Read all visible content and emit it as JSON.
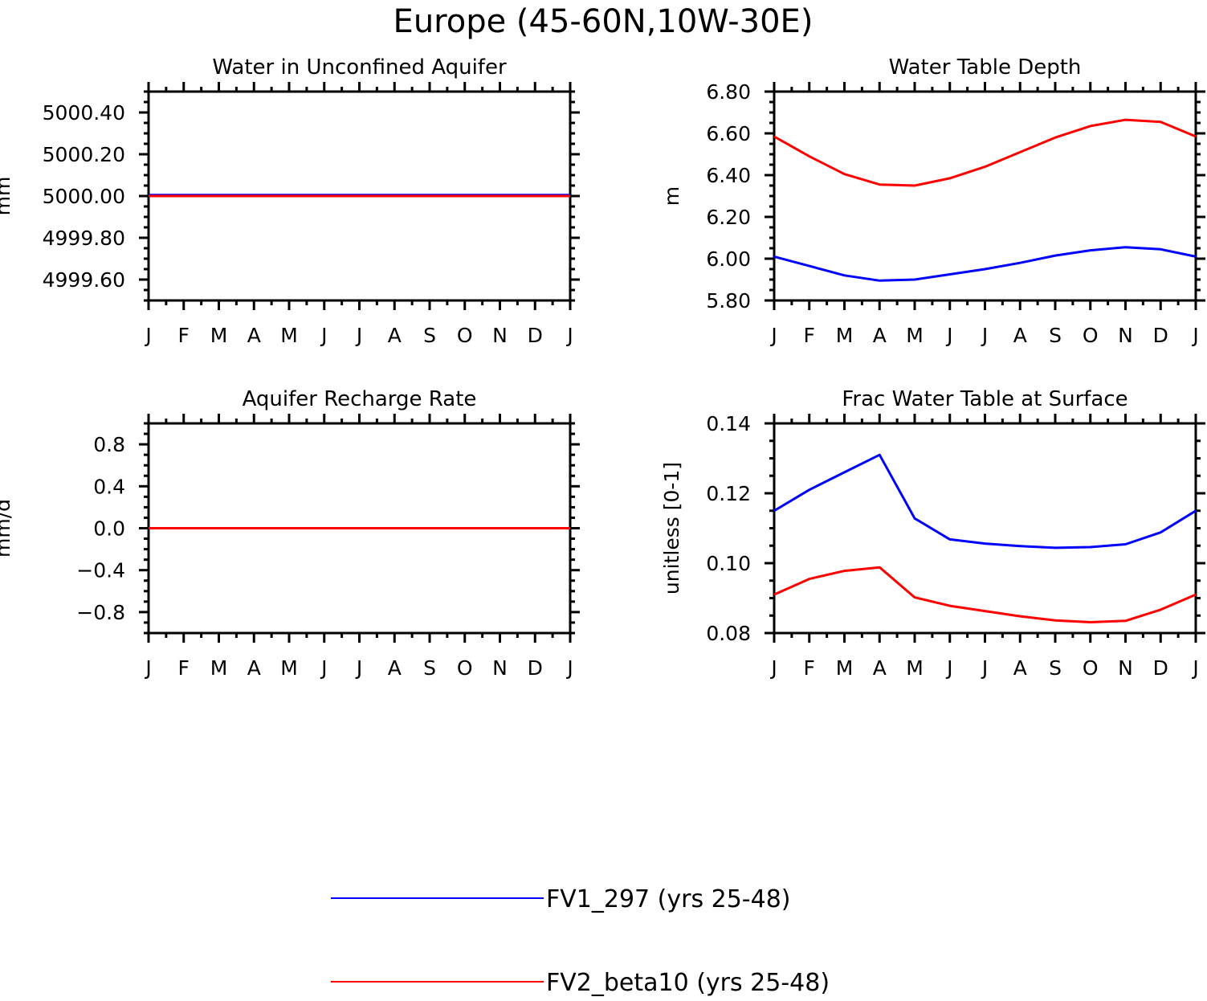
{
  "title": "Europe (45-60N,10W-30E)",
  "colors": {
    "series_1": "#0000ff",
    "series_2": "#ff0000"
  },
  "legend": [
    {
      "label": "FV1_297 (yrs 25-48)",
      "color": "#0000ff"
    },
    {
      "label": "FV2_beta10 (yrs 25-48)",
      "color": "#ff0000"
    }
  ],
  "chart_data": [
    {
      "type": "line",
      "title": "Water in Unconfined Aquifer",
      "ylabel": "mm",
      "xlabel": "",
      "categories": [
        "J",
        "F",
        "M",
        "A",
        "M",
        "J",
        "J",
        "A",
        "S",
        "O",
        "N",
        "D",
        "J"
      ],
      "ylim": [
        4999.5,
        5000.5
      ],
      "yticks": [
        4999.6,
        4999.8,
        5000.0,
        5000.2,
        5000.4
      ],
      "ytick_labels": [
        "4999.60",
        "4999.80",
        "5000.00",
        "5000.20",
        "5000.40"
      ],
      "series": [
        {
          "name": "FV1_297 (yrs 25-48)",
          "color": "#0000ff",
          "values": [
            5000.005,
            5000.005,
            5000.005,
            5000.005,
            5000.005,
            5000.005,
            5000.005,
            5000.005,
            5000.005,
            5000.005,
            5000.005,
            5000.005,
            5000.005
          ]
        },
        {
          "name": "FV2_beta10 (yrs 25-48)",
          "color": "#ff0000",
          "values": [
            5000.0,
            5000.0,
            5000.0,
            5000.0,
            5000.0,
            5000.0,
            5000.0,
            5000.0,
            5000.0,
            5000.0,
            5000.0,
            5000.0,
            5000.0
          ]
        }
      ]
    },
    {
      "type": "line",
      "title": "Water Table Depth",
      "ylabel": "m",
      "xlabel": "",
      "categories": [
        "J",
        "F",
        "M",
        "A",
        "M",
        "J",
        "J",
        "A",
        "S",
        "O",
        "N",
        "D",
        "J"
      ],
      "ylim": [
        5.8,
        6.8
      ],
      "yticks": [
        5.8,
        6.0,
        6.2,
        6.4,
        6.6,
        6.8
      ],
      "ytick_labels": [
        "5.80",
        "6.00",
        "6.20",
        "6.40",
        "6.60",
        "6.80"
      ],
      "series": [
        {
          "name": "FV1_297 (yrs 25-48)",
          "color": "#0000ff",
          "values": [
            6.01,
            5.965,
            5.92,
            5.895,
            5.9,
            5.925,
            5.95,
            5.98,
            6.015,
            6.04,
            6.055,
            6.045,
            6.01
          ]
        },
        {
          "name": "FV2_beta10 (yrs 25-48)",
          "color": "#ff0000",
          "values": [
            6.585,
            6.49,
            6.405,
            6.355,
            6.35,
            6.385,
            6.44,
            6.51,
            6.58,
            6.635,
            6.665,
            6.655,
            6.585
          ]
        }
      ]
    },
    {
      "type": "line",
      "title": "Aquifer Recharge Rate",
      "ylabel": "mm/d",
      "xlabel": "",
      "categories": [
        "J",
        "F",
        "M",
        "A",
        "M",
        "J",
        "J",
        "A",
        "S",
        "O",
        "N",
        "D",
        "J"
      ],
      "ylim": [
        -1.0,
        1.0
      ],
      "yticks": [
        -0.8,
        -0.4,
        0.0,
        0.4,
        0.8
      ],
      "ytick_labels": [
        "−0.8",
        "−0.4",
        "0.0",
        "0.4",
        "0.8"
      ],
      "series": [
        {
          "name": "FV1_297 (yrs 25-48)",
          "color": "#0000ff",
          "values": [
            0,
            0,
            0,
            0,
            0,
            0,
            0,
            0,
            0,
            0,
            0,
            0,
            0
          ]
        },
        {
          "name": "FV2_beta10 (yrs 25-48)",
          "color": "#ff0000",
          "values": [
            0,
            0,
            0,
            0,
            0,
            0,
            0,
            0,
            0,
            0,
            0,
            0,
            0
          ]
        }
      ]
    },
    {
      "type": "line",
      "title": "Frac Water Table at Surface",
      "ylabel": "unitless [0-1]",
      "xlabel": "",
      "categories": [
        "J",
        "F",
        "M",
        "A",
        "M",
        "J",
        "J",
        "A",
        "S",
        "O",
        "N",
        "D",
        "J"
      ],
      "ylim": [
        0.08,
        0.14
      ],
      "yticks": [
        0.08,
        0.1,
        0.12,
        0.14
      ],
      "ytick_labels": [
        "0.08",
        "0.10",
        "0.12",
        "0.14"
      ],
      "series": [
        {
          "name": "FV1_297 (yrs 25-48)",
          "color": "#0000ff",
          "values": [
            0.115,
            0.121,
            0.126,
            0.131,
            0.1128,
            0.1068,
            0.1056,
            0.1049,
            0.1044,
            0.1046,
            0.1054,
            0.1088,
            0.115
          ]
        },
        {
          "name": "FV2_beta10 (yrs 25-48)",
          "color": "#ff0000",
          "values": [
            0.091,
            0.0955,
            0.0978,
            0.0988,
            0.0902,
            0.0878,
            0.0863,
            0.0848,
            0.0836,
            0.0831,
            0.0835,
            0.0867,
            0.091
          ]
        }
      ]
    }
  ]
}
